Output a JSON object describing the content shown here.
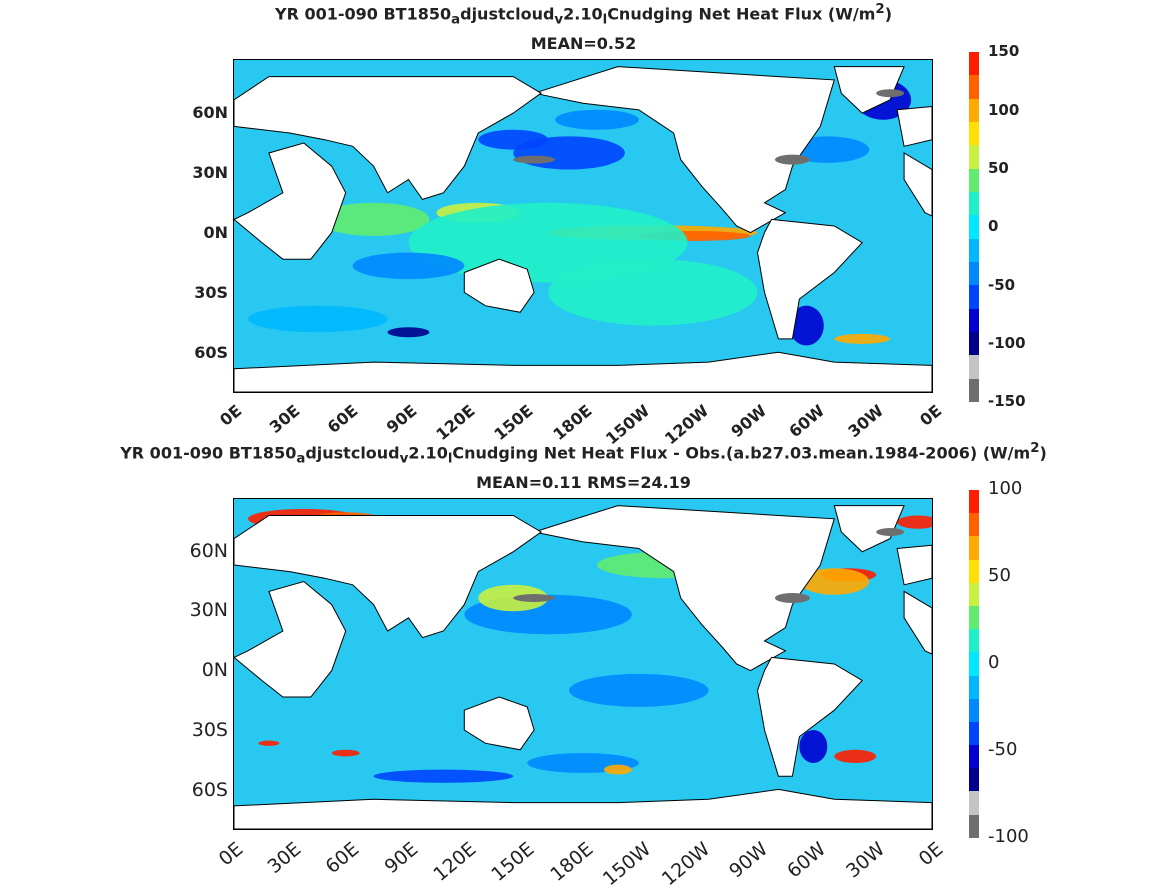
{
  "colors": {
    "scale": [
      "#6e6e6e",
      "#c4c4c4",
      "#00008c",
      "#0000d0",
      "#0044ff",
      "#0088ff",
      "#00b8ff",
      "#00e8ff",
      "#20f0c8",
      "#60ec70",
      "#c8f040",
      "#ffe000",
      "#ffaa00",
      "#ff6000",
      "#ff1e00"
    ],
    "land": "#ffffff",
    "ocean_base": "#28c8f0",
    "ice": "#6e6e6e"
  },
  "chart_data": [
    {
      "type": "heatmap",
      "title": "YR 001-090 BT1850_adjustcloud_v2.10_lCnudging  Net Heat Flux (W/m^2)",
      "subtitle": "MEAN=0.52",
      "x_ticks": [
        "0E",
        "30E",
        "60E",
        "90E",
        "120E",
        "150E",
        "180E",
        "150W",
        "120W",
        "90W",
        "60W",
        "30W",
        "0E"
      ],
      "y_ticks": [
        "60N",
        "30N",
        "0N",
        "30S",
        "60S"
      ],
      "colorbar_ticks": [
        "150",
        "100",
        "50",
        "0",
        "-50",
        "-100",
        "-150"
      ],
      "range": [
        -150,
        150
      ],
      "units": "W/m^2"
    },
    {
      "type": "heatmap",
      "title": "YR 001-090 BT1850_adjustcloud_v2.10_lCnudging  Net Heat Flux - Obs.(a.b27.03.mean.1984-2006) (W/m^2)",
      "subtitle": "MEAN=0.11 RMS=24.19",
      "x_ticks": [
        "0E",
        "30E",
        "60E",
        "90E",
        "120E",
        "150E",
        "180E",
        "150W",
        "120W",
        "90W",
        "60W",
        "30W",
        "0E"
      ],
      "y_ticks": [
        "60N",
        "30N",
        "0N",
        "30S",
        "60S"
      ],
      "colorbar_ticks": [
        "100",
        "50",
        "0",
        "-50",
        "-100"
      ],
      "range": [
        -100,
        100
      ],
      "units": "W/m^2"
    }
  ],
  "text": {
    "t1a": "YR 001-090 BT1850",
    "t1b": "a",
    "t1c": "djustcloud",
    "t1d": "v",
    "t1e": "2.10",
    "t1f": "l",
    "t1g": "Cnudging  Net Heat Flux (W/m",
    "t1h": "2",
    "t1i": ")",
    "s1": "MEAN=0.52",
    "t2a": "YR 001-090 BT1850",
    "t2b": "a",
    "t2c": "djustcloud",
    "t2d": "v",
    "t2e": "2.10",
    "t2f": "l",
    "t2g": "Cnudging  Net Heat Flux - Obs.(a.b27.03.mean.1984-2006) (W/m",
    "t2h": "2",
    "t2i": ")",
    "s2": "MEAN=0.11 RMS=24.19"
  }
}
